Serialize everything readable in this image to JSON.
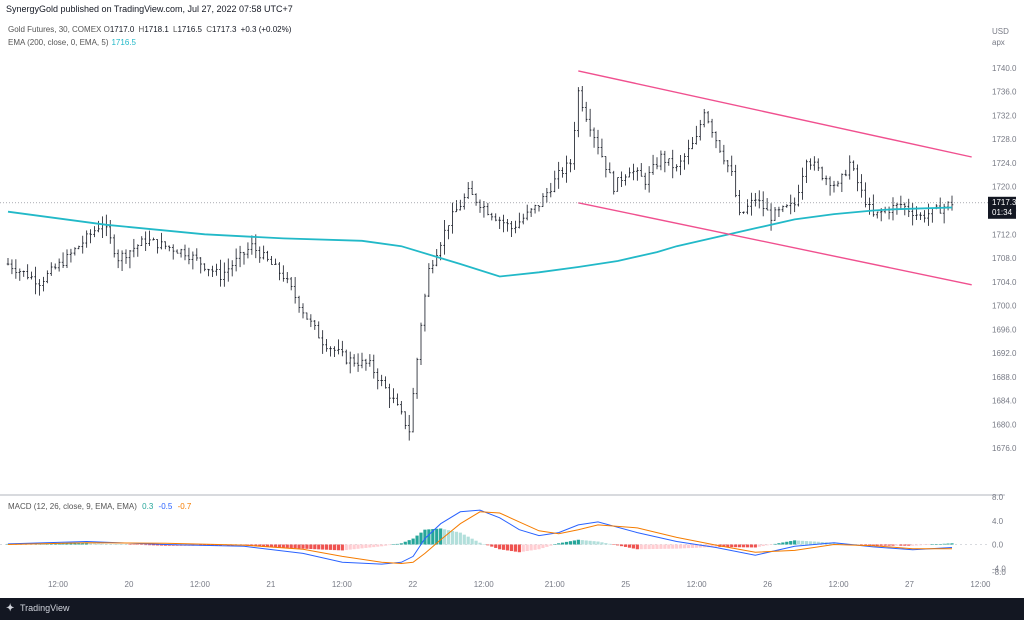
{
  "header": {
    "publisher_line": "SynergyGold published on TradingView.com, Jul 27, 2022 07:58 UTC+7"
  },
  "legend": {
    "instrument": "Gold Futures, 30, COMEX",
    "o_label": "O",
    "o": "1717.0",
    "h_label": "H",
    "h": "1718.1",
    "l_label": "L",
    "l": "1716.5",
    "c_label": "C",
    "c": "1717.3",
    "change": "+0.3 (+0.02%)",
    "ema_label": "EMA (200, close, 0, EMA, 5)",
    "ema_value": "1716.5",
    "macd_label": "MACD (12, 26, close, 9, EMA, EMA)",
    "macd_hist_value": "0.3",
    "macd_value": "-0.5",
    "signal_value": "-0.7"
  },
  "price_axis": {
    "currency": "USD",
    "unit_note": "арх",
    "current_price_label": "1717.3",
    "countdown_label": "01:34"
  },
  "footer": {
    "brand": "TradingView"
  },
  "colors": {
    "candle": "#131722",
    "ema": "#22b9c8",
    "channel": "#f0508f",
    "macd_line": "#2962ff",
    "signal_line": "#f57c00",
    "hist_up_strong": "#26a69a",
    "hist_up_weak": "#b2dfdb",
    "hist_down_strong": "#ef5350",
    "hist_down_weak": "#ffcdd2"
  },
  "chart_data": [
    {
      "type": "candlestick",
      "title": "Gold Futures, 30, COMEX",
      "ylim": [
        1672,
        1742
      ],
      "y_ticks": [
        1676,
        1680,
        1684,
        1688,
        1692,
        1696,
        1700,
        1704,
        1708,
        1712,
        1716,
        1720,
        1724,
        1728,
        1732,
        1736,
        1740
      ],
      "x_ticks": [
        "12:00",
        "20",
        "12:00",
        "21",
        "12:00",
        "22",
        "12:00",
        "21:00",
        "25",
        "12:00",
        "26",
        "12:00",
        "27",
        "12:00"
      ],
      "grid": false,
      "series": [
        {
          "name": "EMA (200, close, 0, EMA, 5)",
          "type": "line",
          "x_index": [
            0,
            25,
            50,
            70,
            90,
            100,
            115,
            125,
            135,
            145,
            155,
            165,
            170,
            180,
            190,
            200,
            210,
            220,
            225,
            230,
            240
          ],
          "values": [
            1715.8,
            1713.6,
            1712.0,
            1711.3,
            1710.9,
            1710.0,
            1707.0,
            1704.9,
            1705.6,
            1706.5,
            1707.5,
            1709.0,
            1710.0,
            1711.5,
            1713.0,
            1714.5,
            1715.4,
            1716.0,
            1716.2,
            1716.3,
            1716.5
          ]
        },
        {
          "name": "Descending channel upper",
          "type": "line",
          "x_index": [
            145,
            245
          ],
          "values": [
            1739.5,
            1725.0
          ]
        },
        {
          "name": "Descending channel lower",
          "type": "line",
          "x_index": [
            145,
            245
          ],
          "values": [
            1717.3,
            1703.5
          ]
        }
      ],
      "keypoints": [
        {
          "x_index": 0,
          "close": 1707
        },
        {
          "x_index": 8,
          "close": 1704
        },
        {
          "x_index": 15,
          "close": 1708
        },
        {
          "x_index": 24,
          "close": 1714
        },
        {
          "x_index": 28,
          "close": 1708
        },
        {
          "x_index": 35,
          "close": 1711
        },
        {
          "x_index": 45,
          "close": 1709
        },
        {
          "x_index": 54,
          "close": 1705
        },
        {
          "x_index": 62,
          "close": 1710
        },
        {
          "x_index": 70,
          "close": 1705
        },
        {
          "x_index": 76,
          "close": 1698
        },
        {
          "x_index": 80,
          "close": 1694
        },
        {
          "x_index": 86,
          "close": 1691
        },
        {
          "x_index": 92,
          "close": 1690
        },
        {
          "x_index": 98,
          "close": 1684
        },
        {
          "x_index": 102,
          "close": 1679
        },
        {
          "x_index": 105,
          "close": 1697
        },
        {
          "x_index": 107,
          "close": 1706
        },
        {
          "x_index": 112,
          "close": 1714
        },
        {
          "x_index": 117,
          "close": 1719
        },
        {
          "x_index": 122,
          "close": 1716
        },
        {
          "x_index": 128,
          "close": 1713
        },
        {
          "x_index": 135,
          "close": 1717
        },
        {
          "x_index": 140,
          "close": 1722
        },
        {
          "x_index": 143,
          "close": 1724
        },
        {
          "x_index": 145,
          "close": 1736
        },
        {
          "x_index": 147,
          "close": 1732
        },
        {
          "x_index": 150,
          "close": 1727
        },
        {
          "x_index": 154,
          "close": 1720
        },
        {
          "x_index": 158,
          "close": 1723
        },
        {
          "x_index": 162,
          "close": 1721
        },
        {
          "x_index": 166,
          "close": 1725
        },
        {
          "x_index": 170,
          "close": 1723
        },
        {
          "x_index": 175,
          "close": 1728
        },
        {
          "x_index": 177,
          "close": 1733
        },
        {
          "x_index": 180,
          "close": 1728
        },
        {
          "x_index": 184,
          "close": 1722
        },
        {
          "x_index": 186,
          "close": 1715
        },
        {
          "x_index": 190,
          "close": 1718
        },
        {
          "x_index": 194,
          "close": 1715
        },
        {
          "x_index": 200,
          "close": 1717
        },
        {
          "x_index": 203,
          "close": 1725
        },
        {
          "x_index": 207,
          "close": 1722
        },
        {
          "x_index": 211,
          "close": 1720
        },
        {
          "x_index": 214,
          "close": 1724
        },
        {
          "x_index": 217,
          "close": 1719
        },
        {
          "x_index": 220,
          "close": 1715
        },
        {
          "x_index": 223,
          "close": 1716
        },
        {
          "x_index": 227,
          "close": 1717
        },
        {
          "x_index": 232,
          "close": 1715
        },
        {
          "x_index": 236,
          "close": 1716
        },
        {
          "x_index": 240,
          "close": 1717.3
        }
      ]
    },
    {
      "type": "line",
      "title": "MACD (12, 26, close, 9, EMA, EMA)",
      "ylim": [
        -8,
        8
      ],
      "y_ticks": [
        -8.0,
        -4.0,
        0.0,
        4.0,
        8.0
      ],
      "series": [
        {
          "name": "MACD",
          "x_index": [
            0,
            20,
            40,
            60,
            75,
            85,
            95,
            100,
            103,
            106,
            110,
            115,
            120,
            125,
            130,
            135,
            140,
            145,
            150,
            160,
            170,
            180,
            190,
            200,
            210,
            220,
            230,
            240
          ],
          "values": [
            0.1,
            0.5,
            0.0,
            -0.3,
            -1.5,
            -3.0,
            -3.3,
            -3.0,
            -2.0,
            1.0,
            3.5,
            5.5,
            5.8,
            4.5,
            2.5,
            1.5,
            2.0,
            3.3,
            3.8,
            2.0,
            0.5,
            -0.5,
            -1.8,
            -0.3,
            0.3,
            -0.4,
            -0.9,
            -0.5
          ]
        },
        {
          "name": "Signal",
          "x_index": [
            0,
            20,
            40,
            60,
            75,
            85,
            95,
            100,
            103,
            106,
            110,
            115,
            120,
            125,
            130,
            135,
            140,
            145,
            150,
            160,
            170,
            180,
            190,
            200,
            210,
            220,
            230,
            240
          ],
          "values": [
            0.0,
            0.3,
            0.2,
            -0.1,
            -0.8,
            -2.0,
            -3.0,
            -3.2,
            -3.0,
            -1.5,
            0.8,
            3.5,
            5.5,
            5.3,
            3.8,
            2.3,
            1.8,
            2.5,
            3.3,
            2.8,
            1.2,
            -0.1,
            -1.3,
            -1.0,
            0.0,
            -0.2,
            -0.7,
            -0.7
          ]
        }
      ]
    }
  ]
}
